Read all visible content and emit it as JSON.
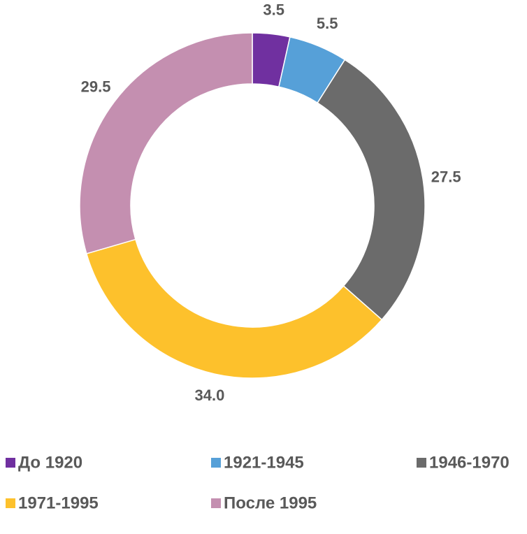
{
  "chart_data": {
    "type": "donut",
    "categories": [
      "До 1920",
      "1921-1945",
      "1946-1970",
      "1971-1995",
      "После 1995"
    ],
    "values": [
      3.5,
      5.5,
      27.5,
      34,
      29.5
    ],
    "value_labels": [
      "3.5",
      "5.5",
      "27.5",
      "34.0",
      "29.5"
    ],
    "colors": [
      "#7030a0",
      "#56a0d8",
      "#6b6b6b",
      "#fdc12c",
      "#c48fb0"
    ],
    "legend": "bottom"
  }
}
